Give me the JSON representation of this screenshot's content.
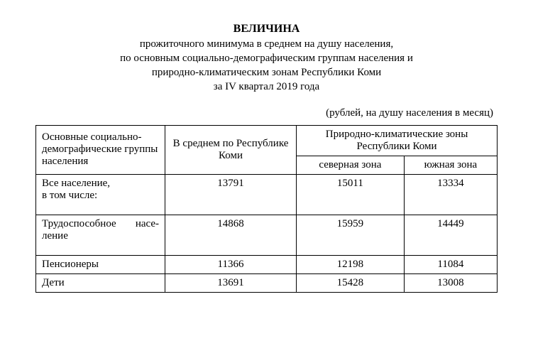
{
  "title": {
    "main": "ВЕЛИЧИНА",
    "line1": "прожиточного минимума в среднем на душу населения,",
    "line2": "по основным социально-демографическим группам населения и",
    "line3": "природно-климатическим зонам Республики Коми",
    "line4": "за IV квартал 2019 года"
  },
  "unit_note": "(рублей, на душу населения в месяц)",
  "table": {
    "headers": {
      "category": "Основные социально-демографические группы населения",
      "avg": "В среднем по Республике Коми",
      "zones_group": "Природно-климатические зоны Республики Коми",
      "north": "северная зона",
      "south": "южная зона"
    },
    "rows": [
      {
        "label_line1": "Все население,",
        "label_line2": "в том числе:",
        "avg": "13791",
        "north": "15011",
        "south": "13334"
      },
      {
        "label_word1": "Трудоспособное",
        "label_word2": "насе-",
        "label_line2": "ление",
        "avg": "14868",
        "north": "15959",
        "south": "14449"
      },
      {
        "label_line1": "Пенсионеры",
        "avg": "11366",
        "north": "12198",
        "south": "11084"
      },
      {
        "label_line1": "Дети",
        "avg": "13691",
        "north": "15428",
        "south": "13008"
      }
    ]
  }
}
